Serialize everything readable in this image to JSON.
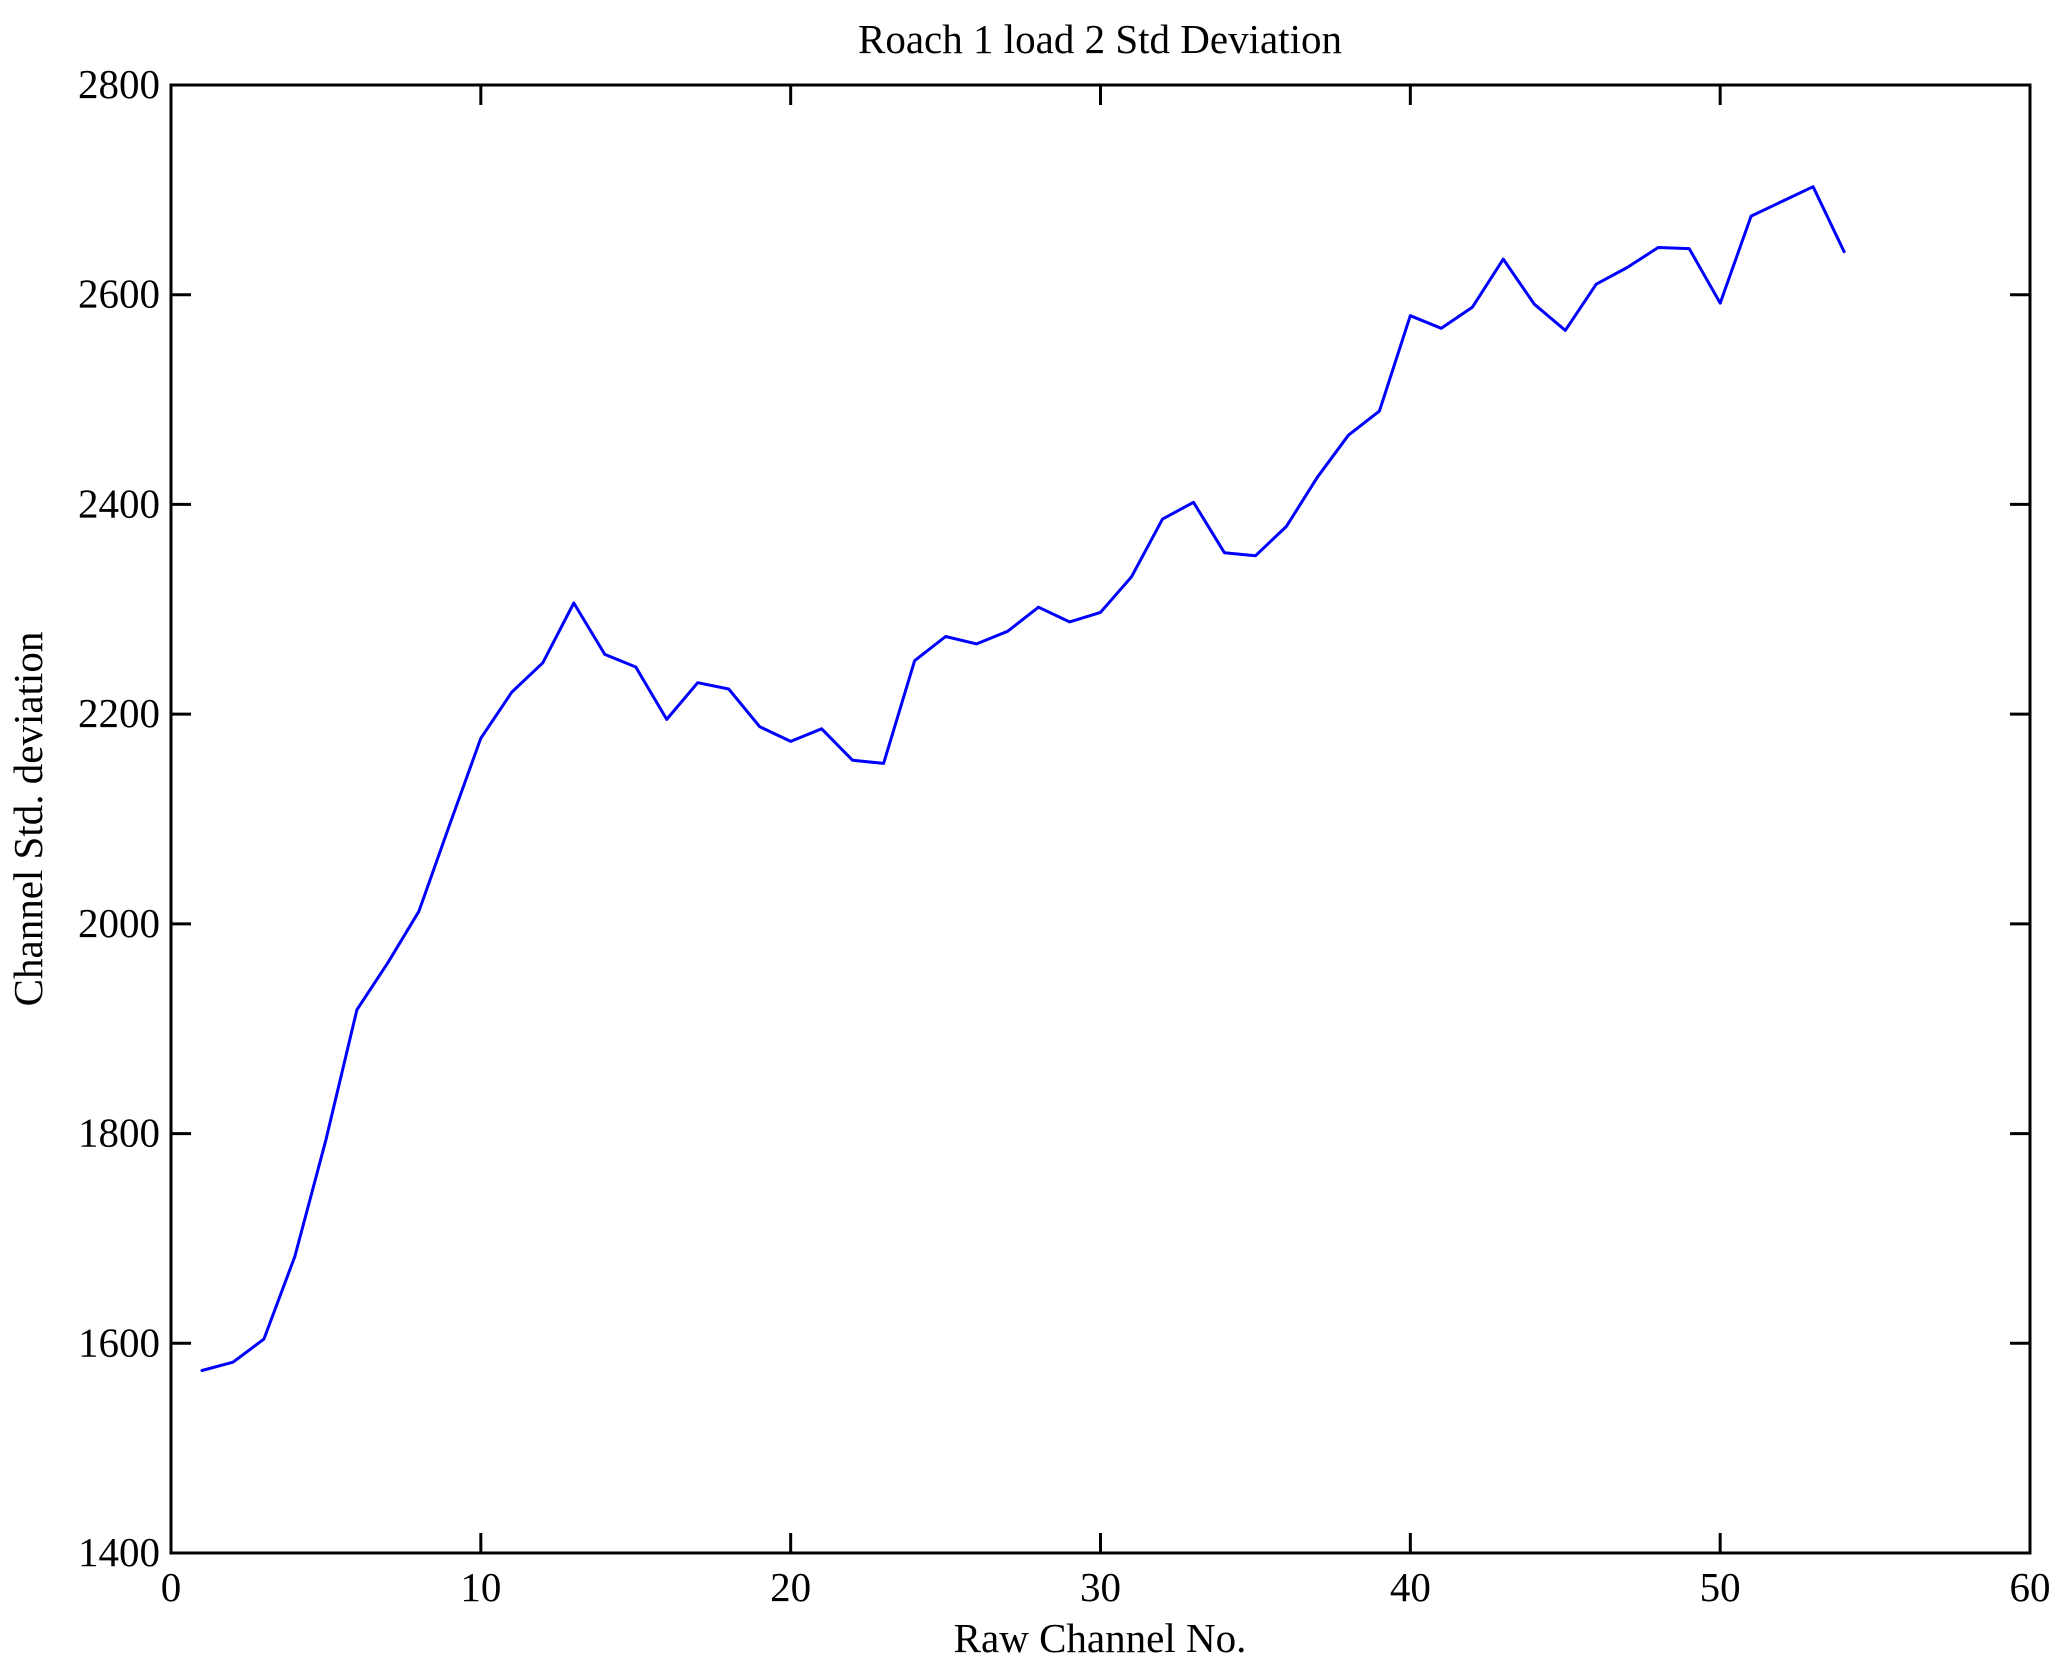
{
  "figure": {
    "background": "#ffffff"
  },
  "chart_data": {
    "type": "line",
    "title": "Roach 1 load 2 Std Deviation",
    "xlabel": "Raw Channel No.",
    "ylabel": "Channel Std. deviation",
    "xlim": [
      0,
      60
    ],
    "ylim": [
      1400,
      2800
    ],
    "x_ticks": [
      0,
      10,
      20,
      30,
      40,
      50,
      60
    ],
    "y_ticks": [
      1400,
      1600,
      1800,
      2000,
      2200,
      2400,
      2600,
      2800
    ],
    "grid": false,
    "legend": null,
    "line_color": "#0000FF",
    "axis_color": "#000000",
    "series": [
      {
        "name": "Channel Std deviation",
        "x": [
          1,
          2,
          3,
          4,
          5,
          6,
          7,
          8,
          9,
          10,
          11,
          12,
          13,
          14,
          15,
          16,
          17,
          18,
          19,
          20,
          21,
          22,
          23,
          24,
          25,
          26,
          27,
          28,
          29,
          30,
          31,
          32,
          33,
          34,
          35,
          36,
          37,
          38,
          39,
          40,
          41,
          42,
          43,
          44,
          45,
          46,
          47,
          48,
          49,
          50,
          51,
          52,
          53,
          54
        ],
        "y": [
          1574,
          1582,
          1604,
          1683,
          1794,
          1918,
          1963,
          2012,
          2095,
          2177,
          2221,
          2249,
          2306,
          2257,
          2245,
          2195,
          2230,
          2224,
          2188,
          2174,
          2186,
          2156,
          2153,
          2251,
          2274,
          2267,
          2279,
          2302,
          2288,
          2297,
          2331,
          2386,
          2402,
          2354,
          2351,
          2379,
          2426,
          2466,
          2489,
          2580,
          2568,
          2588,
          2634,
          2591,
          2566,
          2610,
          2626,
          2645,
          2644,
          2592,
          2675,
          2689,
          2703,
          2641
        ]
      }
    ]
  }
}
